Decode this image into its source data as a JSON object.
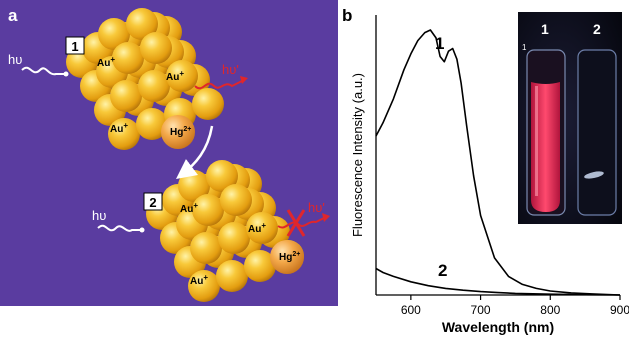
{
  "figure": {
    "panel_a": {
      "label": "a",
      "state1_label": "1",
      "state2_label": "2",
      "excitation": "hυ",
      "emission": "hυ'",
      "au_ion": "Au",
      "au_charge": "+",
      "hg_ion": "Hg",
      "hg_charge": "2+",
      "colors": {
        "background": "#5a3ca0",
        "gold": "#f2b21e",
        "hg_sphere": "#f0a338",
        "emission": "#e0262b",
        "arrow": "#ffffff"
      }
    },
    "panel_b": {
      "label": "b",
      "inset": {
        "vial1_label": "1",
        "vial2_label": "2",
        "vial_mark": "1",
        "glow_color": "#f0325a"
      }
    }
  },
  "chart_data": {
    "type": "line",
    "xlabel": "Wavelength (nm)",
    "ylabel": "Fluorescence Intensity (a.u.)",
    "xlim": [
      550,
      900
    ],
    "xticks": [
      600,
      700,
      800,
      900
    ],
    "y_ticks_shown": false,
    "grid": false,
    "series": [
      {
        "name": "1",
        "x": [
          550,
          560,
          575,
          590,
          600,
          610,
          620,
          628,
          636,
          642,
          648,
          654,
          660,
          666,
          672,
          680,
          690,
          700,
          720,
          740,
          760,
          780,
          800,
          830,
          860,
          900
        ],
        "y": [
          0.6,
          0.65,
          0.74,
          0.85,
          0.91,
          0.96,
          0.99,
          1.0,
          0.97,
          0.9,
          0.88,
          0.92,
          0.93,
          0.89,
          0.8,
          0.64,
          0.45,
          0.3,
          0.14,
          0.07,
          0.04,
          0.025,
          0.015,
          0.008,
          0.004,
          0.0
        ]
      },
      {
        "name": "2",
        "x": [
          550,
          560,
          575,
          600,
          625,
          650,
          675,
          700,
          725,
          750,
          800,
          850,
          900
        ],
        "y": [
          0.1,
          0.085,
          0.07,
          0.05,
          0.035,
          0.025,
          0.018,
          0.013,
          0.009,
          0.006,
          0.003,
          0.001,
          0.0
        ]
      }
    ]
  }
}
